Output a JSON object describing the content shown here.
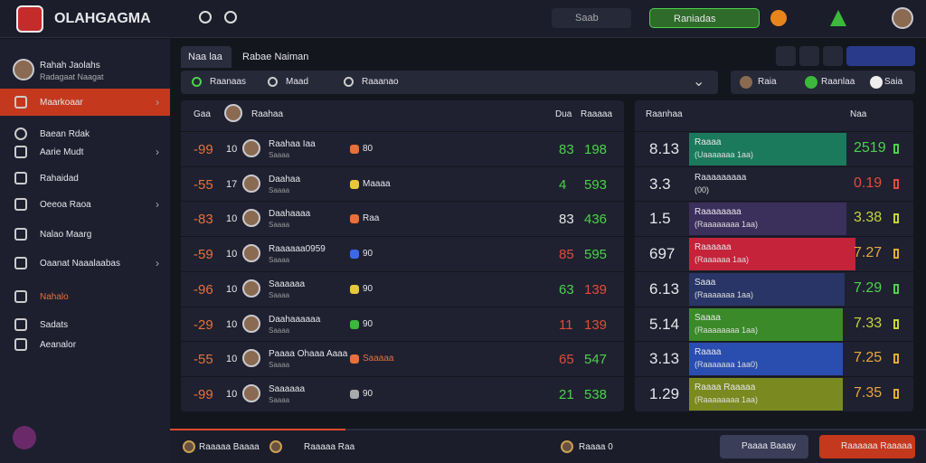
{
  "header": {
    "brand": "OLAHGAGMA",
    "search": "Saab",
    "filter": "Raniadas"
  },
  "sidebar": {
    "profile": {
      "name": "Rahah Jaolahs",
      "sub": "Radagaat Naagat"
    },
    "items": [
      "Maarkoaar",
      "Baean Rdak",
      "Aarie Mudt",
      "Rahaidad",
      "Oeeoa Raoa",
      "Nalao Maarg",
      "Oaanat Naaalaabas",
      "Nahalo",
      "Sadats",
      "Aeanalor"
    ]
  },
  "tabs": [
    "Naa laa",
    "Rabae Naiman"
  ],
  "filters": [
    "Raanaas",
    "Maad",
    "Raaanao"
  ],
  "right_tabs": [
    "Raia",
    "Raanlaa",
    "Saia"
  ],
  "table": {
    "header": [
      "Gaa",
      "Raahaa",
      "Dua",
      "Raaaaa"
    ],
    "rows": [
      {
        "rank": "-99",
        "num": "10",
        "name": "Raahaa Iaa",
        "sub": "Saaaa",
        "tag": "80",
        "v1": "83",
        "v2": "198",
        "c1": "#4cd14c",
        "c2": "#4cd14c"
      },
      {
        "rank": "-55",
        "num": "17",
        "name": "Daahaa",
        "sub": "Saaaa",
        "tag": "Maaaa",
        "v1": "4",
        "v2": "593",
        "c1": "#4cd14c",
        "c2": "#4cd14c"
      },
      {
        "rank": "-83",
        "num": "10",
        "name": "Daahaaaa",
        "sub": "Saaaa",
        "tag": "Raa",
        "v1": "83",
        "v2": "436",
        "c1": "#e8e8e8",
        "c2": "#4cd14c"
      },
      {
        "rank": "-59",
        "num": "10",
        "name": "Raaaaaa0959",
        "sub": "Saaaa",
        "tag": "90",
        "v1": "85",
        "v2": "595",
        "c1": "#e24b3b",
        "c2": "#4cd14c"
      },
      {
        "rank": "-96",
        "num": "10",
        "name": "Saaaaaa",
        "sub": "Saaaa",
        "tag": "90",
        "v1": "63",
        "v2": "139",
        "c1": "#4cd14c",
        "c2": "#e24b3b"
      },
      {
        "rank": "-29",
        "num": "10",
        "name": "Daahaaaaaa",
        "sub": "Saaaa",
        "tag": "90",
        "v1": "11",
        "v2": "139",
        "c1": "#e24b3b",
        "c2": "#e24b3b"
      },
      {
        "rank": "-55",
        "num": "10",
        "name": "Paaaa Ohaaa Aaaa",
        "sub": "Saaaa",
        "tag": "Saaaaa",
        "v1": "65",
        "v2": "547",
        "c1": "#e24b3b",
        "c2": "#4cd14c"
      },
      {
        "rank": "-99",
        "num": "10",
        "name": "Saaaaaa",
        "sub": "Saaaa",
        "tag": "90",
        "v1": "21",
        "v2": "538",
        "c1": "#4cd14c",
        "c2": "#4cd14c"
      }
    ]
  },
  "panel": {
    "header": [
      "Raanhaa",
      "Naa"
    ],
    "rows": [
      {
        "value": "8.13",
        "label": "Raaaa",
        "sub": "(Uaaaaaaa 1aa)",
        "color": "#1b7a5c",
        "score": "2519",
        "sc": "#4cd14c"
      },
      {
        "value": "3.3",
        "label": "Raaaaaaaaa",
        "sub": "(00)",
        "color": "#22243a",
        "score": "0.19",
        "sc": "#e24b3b"
      },
      {
        "value": "1.5",
        "label": "Raaaaaaaa",
        "sub": "(Raaaaaaaa 1aa)",
        "color": "#3b2f5c",
        "score": "3.38",
        "sc": "#c8d43a"
      },
      {
        "value": "697",
        "label": "Raaaaaa",
        "sub": "(Raaaaaa 1aa)",
        "color": "#c4233a",
        "score": "7.27",
        "sc": "#e8a83a"
      },
      {
        "value": "6.13",
        "label": "Saaa",
        "sub": "(Raaaaaaa 1aa)",
        "color": "#283566",
        "score": "7.29",
        "sc": "#4cd14c"
      },
      {
        "value": "5.14",
        "label": "Saaaa",
        "sub": "(Raaaaaaaa 1aa)",
        "color": "#3a8a2a",
        "score": "7.33",
        "sc": "#c8d43a"
      },
      {
        "value": "3.13",
        "label": "Raaaa",
        "sub": "(Raaaaaaa 1aa0)",
        "color": "#2a4db0",
        "score": "7.25",
        "sc": "#e8a83a"
      },
      {
        "value": "1.29",
        "label": "Raaaa Raaaaa",
        "sub": "(Raaaaaaaa 1aa)",
        "color": "#7a8a20",
        "score": "7.35",
        "sc": "#e8a83a"
      }
    ]
  },
  "footer": [
    "Raaaaa Baaaa",
    "Raaaaa Raa",
    "Raaaa 0",
    "Paaaa Baaay",
    "Raaaaaa Raaaaa"
  ]
}
